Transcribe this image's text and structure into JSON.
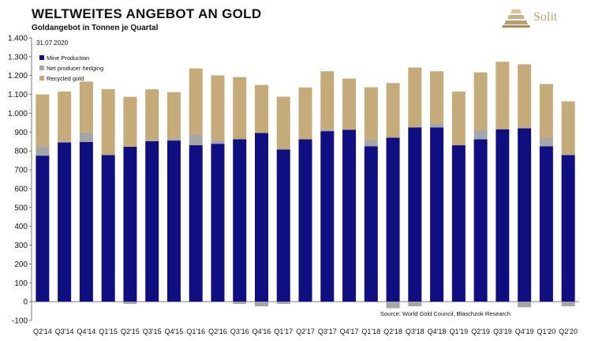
{
  "header": {
    "title": "WELTWEITES ANGEBOT AN GOLD",
    "subtitle": "Goldangebot in Tonnen je Quartal"
  },
  "logo": {
    "name": "Solit",
    "icon": "stacked-bars-logo-icon"
  },
  "colors": {
    "mine": "#0f0f82",
    "hedging": "#a6a6a6",
    "recycled": "#c4ab79",
    "text": "#111111",
    "axis": "#555555"
  },
  "chart_data": {
    "type": "bar",
    "stacked": true,
    "date_label": "31.07.2020",
    "source": "Source: World Gold Council, Blaschzok Research",
    "ylim": [
      -100,
      1400
    ],
    "yticks": [
      -100,
      0,
      100,
      200,
      300,
      400,
      500,
      600,
      700,
      800,
      900,
      1000,
      1100,
      1200,
      1300,
      1400
    ],
    "ytick_labels": [
      "-100",
      "0",
      "100",
      "200",
      "300",
      "400",
      "500",
      "600",
      "700",
      "800",
      "900",
      "1.000",
      "1.100",
      "1.200",
      "1.300",
      "1.400"
    ],
    "legend_position": "top-left",
    "categories": [
      "Q2'14",
      "Q3'14",
      "Q4'14",
      "Q1'15",
      "Q2'15",
      "Q3'15",
      "Q4'15",
      "Q1'16",
      "Q2'16",
      "Q3'16",
      "Q4'16",
      "Q1'17",
      "Q2'17",
      "Q3'17",
      "Q4'17",
      "Q1'18",
      "Q2'18",
      "Q3'18",
      "Q4'18",
      "Q1'19",
      "Q2'19",
      "Q3'19",
      "Q4'19",
      "Q1'20",
      "Q2'20"
    ],
    "series": [
      {
        "name": "Mine Production",
        "values": [
          775,
          845,
          848,
          778,
          822,
          852,
          855,
          830,
          838,
          862,
          895,
          808,
          862,
          905,
          912,
          825,
          870,
          925,
          925,
          830,
          862,
          915,
          920,
          825,
          778
        ]
      },
      {
        "name": "Net producer hedging",
        "values": [
          50,
          5,
          50,
          0,
          -12,
          5,
          12,
          58,
          18,
          -12,
          -25,
          -12,
          0,
          8,
          0,
          35,
          -35,
          -25,
          20,
          0,
          50,
          0,
          -30,
          45,
          -25
        ]
      },
      {
        "name": "Recycled gold",
        "values": [
          275,
          265,
          270,
          350,
          265,
          270,
          245,
          350,
          345,
          330,
          255,
          280,
          275,
          310,
          272,
          278,
          290,
          318,
          278,
          285,
          305,
          358,
          340,
          285,
          285
        ]
      }
    ]
  }
}
